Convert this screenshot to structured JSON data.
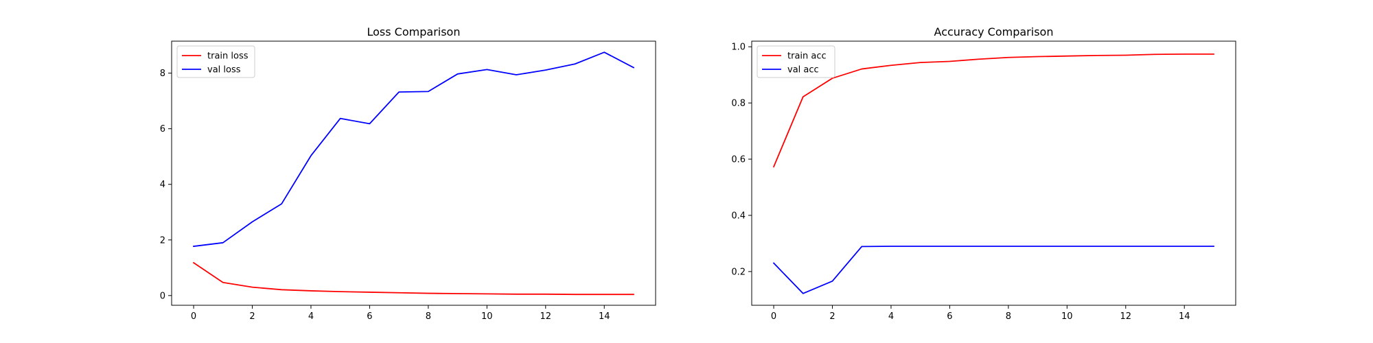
{
  "chart_data": [
    {
      "type": "line",
      "title": "Loss Comparison",
      "xlabel": "",
      "ylabel": "",
      "xlim": [
        -0.75,
        15.75
      ],
      "ylim": [
        -0.35,
        9.15
      ],
      "xticks": [
        0,
        2,
        4,
        6,
        8,
        10,
        12,
        14
      ],
      "yticks": [
        0,
        2,
        4,
        6,
        8
      ],
      "grid": false,
      "legend_position": "top-left",
      "x": [
        0,
        1,
        2,
        3,
        4,
        5,
        6,
        7,
        8,
        9,
        10,
        11,
        12,
        13,
        14,
        15
      ],
      "series": [
        {
          "name": "train loss",
          "color": "#ff0000",
          "values": [
            1.18,
            0.47,
            0.3,
            0.21,
            0.17,
            0.14,
            0.12,
            0.1,
            0.08,
            0.07,
            0.06,
            0.05,
            0.05,
            0.04,
            0.04,
            0.04
          ]
        },
        {
          "name": "val loss",
          "color": "#0000ff",
          "values": [
            1.77,
            1.9,
            2.65,
            3.3,
            5.03,
            6.37,
            6.18,
            7.32,
            7.34,
            7.97,
            8.13,
            7.94,
            8.11,
            8.33,
            8.75,
            8.2
          ]
        }
      ]
    },
    {
      "type": "line",
      "title": "Accuracy Comparison",
      "xlabel": "",
      "ylabel": "",
      "xlim": [
        -0.75,
        15.75
      ],
      "ylim": [
        0.08,
        1.02
      ],
      "xticks": [
        0,
        2,
        4,
        6,
        8,
        10,
        12,
        14
      ],
      "yticks": [
        0.2,
        0.4,
        0.6,
        0.8,
        1.0
      ],
      "ytick_labels": [
        "0.2",
        "0.4",
        "0.6",
        "0.8",
        "1.0"
      ],
      "grid": false,
      "legend_position": "top-left",
      "x": [
        0,
        1,
        2,
        3,
        4,
        5,
        6,
        7,
        8,
        9,
        10,
        11,
        12,
        13,
        14,
        15
      ],
      "series": [
        {
          "name": "train acc",
          "color": "#ff0000",
          "values": [
            0.573,
            0.822,
            0.888,
            0.921,
            0.934,
            0.944,
            0.948,
            0.956,
            0.962,
            0.965,
            0.967,
            0.969,
            0.97,
            0.973,
            0.974,
            0.974
          ]
        },
        {
          "name": "val acc",
          "color": "#0000ff",
          "values": [
            0.23,
            0.122,
            0.166,
            0.289,
            0.29,
            0.29,
            0.29,
            0.29,
            0.29,
            0.29,
            0.29,
            0.29,
            0.29,
            0.29,
            0.29,
            0.29
          ]
        }
      ]
    }
  ]
}
